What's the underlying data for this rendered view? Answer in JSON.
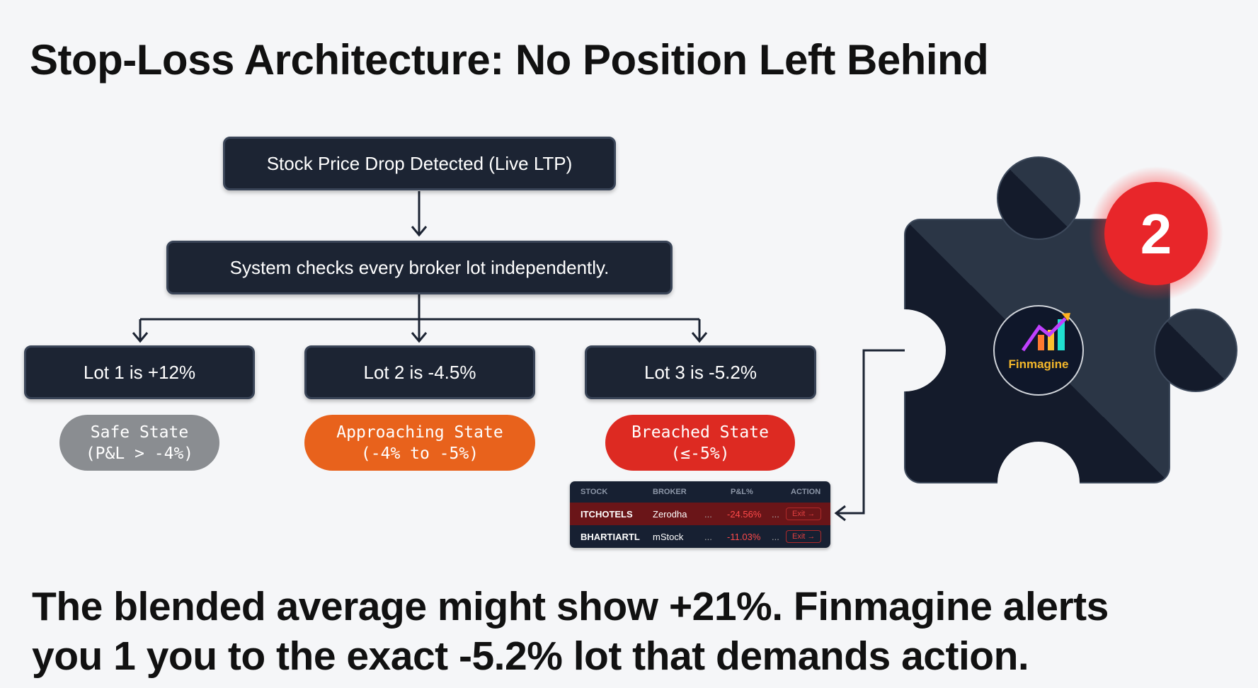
{
  "title": "Stop-Loss Architecture: No Position Left Behind",
  "flow": {
    "trigger": "Stock Price Drop Detected (Live LTP)",
    "check": "System checks every broker lot independently.",
    "lots": [
      {
        "label": "Lot 1 is +12%",
        "state": "Safe State",
        "range": "(P&L > -4%)",
        "color": "#8a8d91"
      },
      {
        "label": "Lot 2 is -4.5%",
        "state": "Approaching State",
        "range": "(-4% to -5%)",
        "color": "#e8621c"
      },
      {
        "label": "Lot 3 is -5.2%",
        "state": "Breached State",
        "range": "(≤-5%)",
        "color": "#dd2a22"
      }
    ]
  },
  "table": {
    "headers": [
      "STOCK",
      "BROKER",
      "P&L%",
      "ACTION"
    ],
    "rows": [
      {
        "stock": "ITCHOTELS",
        "broker": "Zerodha",
        "dots1": "...",
        "pnl": "-24.56%",
        "dots2": "...",
        "action": "Exit →"
      },
      {
        "stock": "BHARTIARTL",
        "broker": "mStock",
        "dots1": "...",
        "pnl": "-11.03%",
        "dots2": "...",
        "action": "Exit →"
      }
    ]
  },
  "puzzle": {
    "badge": "2",
    "logo_text": "Finmagine",
    "badge_color": "#e8262a",
    "logo_text_color": "#f5b82a"
  },
  "footer": {
    "line1": "The blended average might show +21%. Finmagine alerts",
    "line2": "you 1 you to the exact -5.2% lot that demands action."
  }
}
